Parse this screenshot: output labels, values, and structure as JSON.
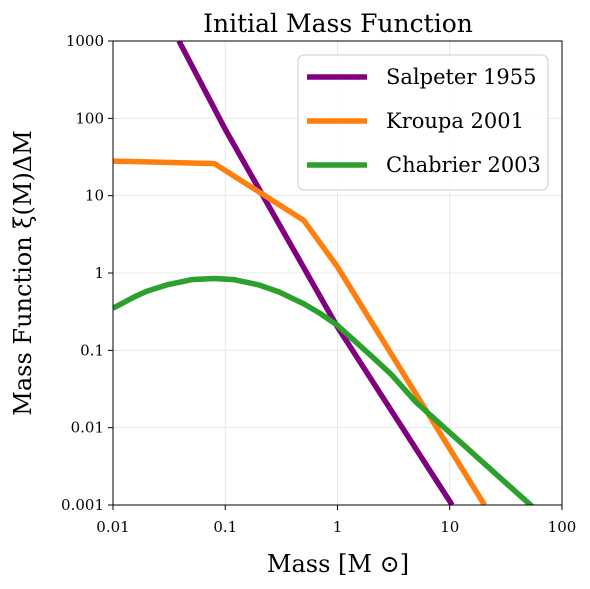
{
  "chart_data": {
    "type": "line",
    "title": "Initial Mass Function",
    "xlabel": "Mass [M ⊙]",
    "ylabel": "Mass Function  ξ(M)ΔM",
    "xscale": "log",
    "yscale": "log",
    "xlim": [
      0.01,
      100
    ],
    "ylim": [
      0.001,
      1000
    ],
    "grid": true,
    "legend_position": "top-right",
    "x_ticks": [
      {
        "value": 0.01,
        "label": "0.01"
      },
      {
        "value": 0.1,
        "label": "0.1"
      },
      {
        "value": 1,
        "label": "1"
      },
      {
        "value": 10,
        "label": "10"
      },
      {
        "value": 100,
        "label": "100"
      }
    ],
    "y_ticks": [
      {
        "value": 0.001,
        "label": "0.001"
      },
      {
        "value": 0.01,
        "label": "0.01"
      },
      {
        "value": 0.1,
        "label": "0.1"
      },
      {
        "value": 1,
        "label": "1"
      },
      {
        "value": 10,
        "label": "10"
      },
      {
        "value": 100,
        "label": "100"
      },
      {
        "value": 1000,
        "label": "1000"
      }
    ],
    "series": [
      {
        "name": "Salpeter 1955",
        "color": "#800080",
        "x": [
          0.0387,
          0.1,
          1,
          10.5
        ],
        "y": [
          1000,
          72,
          0.2,
          0.001
        ]
      },
      {
        "name": "Kroupa 2001",
        "color": "#ff7f0e",
        "x": [
          0.01,
          0.08,
          0.5,
          1,
          20.4
        ],
        "y": [
          28,
          26,
          4.8,
          1.2,
          0.001
        ]
      },
      {
        "name": "Chabrier 2003",
        "color": "#2ca02c",
        "x": [
          0.01,
          0.015,
          0.02,
          0.03,
          0.05,
          0.08,
          0.12,
          0.2,
          0.3,
          0.5,
          0.7,
          1,
          2,
          3,
          5,
          10,
          20,
          40,
          70
        ],
        "y": [
          0.35,
          0.48,
          0.58,
          0.7,
          0.82,
          0.85,
          0.82,
          0.7,
          0.57,
          0.4,
          0.3,
          0.21,
          0.0846,
          0.0491,
          0.0214,
          0.00865,
          0.0035,
          0.00142,
          0.00069
        ]
      }
    ]
  }
}
